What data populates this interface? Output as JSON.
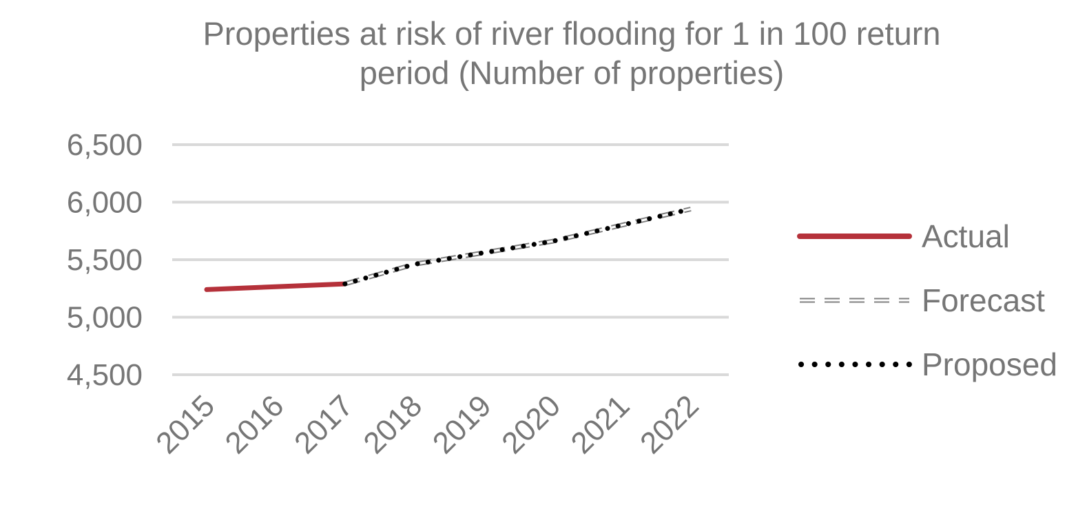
{
  "chart_data": {
    "type": "line",
    "title": "Properties at risk of river flooding for 1 in 100 return period (Number of properties)",
    "xlabel": "",
    "ylabel": "",
    "categories": [
      "2015",
      "2016",
      "2017",
      "2018",
      "2019",
      "2020",
      "2021",
      "2022"
    ],
    "ylim": [
      4500,
      6500
    ],
    "yticks": [
      4500,
      5000,
      5500,
      6000,
      6500
    ],
    "ytick_labels": [
      "4,500",
      "5,000",
      "5,500",
      "6,000",
      "6,500"
    ],
    "grid": true,
    "legend_position": "right",
    "series": [
      {
        "name": "Actual",
        "style": "solid",
        "color": "#b5313a",
        "values": [
          5240,
          5265,
          5290,
          null,
          null,
          null,
          null,
          null
        ]
      },
      {
        "name": "Forecast",
        "style": "dashed",
        "color": "#a6a6a6",
        "values": [
          null,
          null,
          5290,
          5460,
          5560,
          5660,
          5800,
          5940
        ]
      },
      {
        "name": "Proposed",
        "style": "dotted",
        "color": "#000000",
        "values": [
          null,
          null,
          5290,
          5460,
          5560,
          5660,
          5800,
          5940
        ]
      }
    ]
  }
}
